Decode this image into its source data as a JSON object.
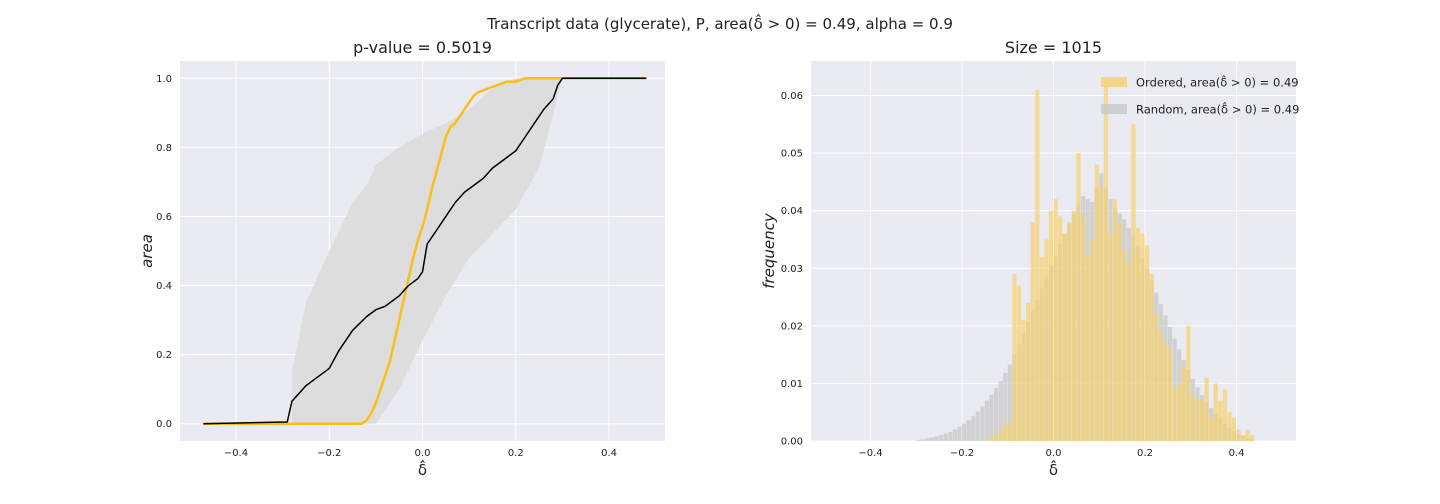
{
  "suptitle": "Transcript data (glycerate), P, area(δ̂ > 0) = 0.49, alpha = 0.9",
  "colors": {
    "axes_bg": "#eaeaf2",
    "grid": "#ffffff",
    "ordered": "#fbbf16",
    "random": "#000000",
    "band": "#dcdcdc",
    "hist_random": "#c8c8c8"
  },
  "chart_data": [
    {
      "type": "line",
      "title": "p-value = 0.5019",
      "xlabel": "δ̂",
      "ylabel": "area",
      "xlim": [
        -0.52,
        0.52
      ],
      "ylim": [
        -0.05,
        1.05
      ],
      "xticks": [
        -0.4,
        -0.2,
        0.0,
        0.2,
        0.4
      ],
      "xtick_labels": [
        "−0.4",
        "−0.2",
        "0.0",
        "0.2",
        "0.4"
      ],
      "yticks": [
        0.0,
        0.2,
        0.4,
        0.6,
        0.8,
        1.0
      ],
      "ytick_labels": [
        "0.0",
        "0.2",
        "0.4",
        "0.6",
        "0.8",
        "1.0"
      ],
      "grid": true,
      "band": {
        "x": [
          -0.28,
          -0.25,
          -0.2,
          -0.15,
          -0.12,
          -0.1,
          -0.05,
          0.0,
          0.05,
          0.1,
          0.15,
          0.2,
          0.25,
          0.3
        ],
        "upper": [
          0.15,
          0.35,
          0.5,
          0.64,
          0.69,
          0.75,
          0.8,
          0.84,
          0.87,
          0.91,
          0.97,
          1.0,
          1.0,
          1.0
        ],
        "lower": [
          0.0,
          0.0,
          0.0,
          0.0,
          0.0,
          0.0,
          0.1,
          0.24,
          0.37,
          0.48,
          0.55,
          0.62,
          0.74,
          1.0
        ]
      },
      "series": [
        {
          "name": "Random",
          "color": "#000000",
          "x": [
            -0.47,
            -0.29,
            -0.28,
            -0.27,
            -0.25,
            -0.23,
            -0.2,
            -0.18,
            -0.15,
            -0.12,
            -0.1,
            -0.08,
            -0.05,
            -0.03,
            -0.01,
            0.0,
            0.01,
            0.03,
            0.05,
            0.07,
            0.09,
            0.11,
            0.13,
            0.15,
            0.18,
            0.2,
            0.22,
            0.24,
            0.26,
            0.28,
            0.29,
            0.3,
            0.48
          ],
          "y": [
            0.0,
            0.005,
            0.065,
            0.08,
            0.11,
            0.13,
            0.16,
            0.21,
            0.27,
            0.31,
            0.33,
            0.34,
            0.37,
            0.4,
            0.42,
            0.44,
            0.52,
            0.56,
            0.6,
            0.64,
            0.67,
            0.69,
            0.71,
            0.74,
            0.77,
            0.79,
            0.83,
            0.87,
            0.91,
            0.94,
            0.98,
            1.0,
            1.0
          ]
        },
        {
          "name": "Ordered",
          "color": "#fbbf16",
          "x": [
            -0.47,
            -0.13,
            -0.12,
            -0.11,
            -0.1,
            -0.09,
            -0.08,
            -0.07,
            -0.06,
            -0.05,
            -0.04,
            -0.03,
            -0.02,
            -0.01,
            0.0,
            0.01,
            0.02,
            0.03,
            0.04,
            0.05,
            0.06,
            0.07,
            0.08,
            0.09,
            0.1,
            0.11,
            0.12,
            0.14,
            0.16,
            0.18,
            0.2,
            0.22,
            0.24,
            0.26,
            0.28,
            0.48
          ],
          "y": [
            0.0,
            0.0,
            0.01,
            0.03,
            0.06,
            0.1,
            0.14,
            0.18,
            0.24,
            0.3,
            0.36,
            0.42,
            0.48,
            0.53,
            0.57,
            0.62,
            0.68,
            0.73,
            0.78,
            0.83,
            0.86,
            0.87,
            0.89,
            0.91,
            0.93,
            0.95,
            0.96,
            0.97,
            0.98,
            0.99,
            0.99,
            1.0,
            1.0,
            1.0,
            1.0,
            1.0
          ]
        }
      ]
    },
    {
      "type": "bar",
      "title": "Size = 1015",
      "xlabel": "δ̂",
      "ylabel": "frequency",
      "xlim": [
        -0.53,
        0.53
      ],
      "ylim": [
        0.0,
        0.066
      ],
      "xticks": [
        -0.4,
        -0.2,
        0.0,
        0.2,
        0.4
      ],
      "xtick_labels": [
        "−0.4",
        "−0.2",
        "0.0",
        "0.2",
        "0.4"
      ],
      "yticks": [
        0.0,
        0.01,
        0.02,
        0.03,
        0.04,
        0.05,
        0.06
      ],
      "ytick_labels": [
        "0.00",
        "0.01",
        "0.02",
        "0.03",
        "0.04",
        "0.05",
        "0.06"
      ],
      "grid": true,
      "legend_position": "top-right",
      "bin_start": -0.3,
      "bin_width": 0.01,
      "series": [
        {
          "name": "Ordered, area(δ̂ > 0) = 0.49",
          "color": "#f6d16b",
          "values": [
            0.0,
            0.0,
            0.0,
            0.0,
            0.0,
            0.0,
            0.0,
            0.0,
            0.0,
            0.0,
            0.0,
            0.0,
            0.0,
            0.0,
            0.0,
            0.0,
            0.001,
            0.001,
            0.002,
            0.003,
            0.003,
            0.029,
            0.027,
            0.021,
            0.024,
            0.038,
            0.061,
            0.032,
            0.035,
            0.04,
            0.042,
            0.039,
            0.036,
            0.038,
            0.04,
            0.05,
            0.039,
            0.032,
            0.035,
            0.048,
            0.044,
            0.062,
            0.036,
            0.042,
            0.038,
            0.033,
            0.031,
            0.055,
            0.037,
            0.036,
            0.034,
            0.029,
            0.022,
            0.019,
            0.017,
            0.016,
            0.009,
            0.01,
            0.013,
            0.02,
            0.008,
            0.007,
            0.007,
            0.011,
            0.004,
            0.01,
            0.007,
            0.009,
            0.005,
            0.004,
            0.002,
            0.001,
            0.002,
            0.001
          ]
        },
        {
          "name": "Random, area(δ̂ > 0) = 0.49",
          "color": "#c8c8c8",
          "values": [
            0.0002,
            0.0003,
            0.0005,
            0.0006,
            0.0008,
            0.001,
            0.0013,
            0.0016,
            0.002,
            0.0025,
            0.003,
            0.0036,
            0.0043,
            0.0051,
            0.006,
            0.007,
            0.008,
            0.0092,
            0.0104,
            0.0118,
            0.0133,
            0.015,
            0.0168,
            0.0187,
            0.0206,
            0.0226,
            0.0245,
            0.0265,
            0.0286,
            0.0305,
            0.0322,
            0.0342,
            0.036,
            0.0378,
            0.0395,
            0.041,
            0.0425,
            0.042,
            0.0415,
            0.044,
            0.0465,
            0.044,
            0.042,
            0.0405,
            0.0395,
            0.0385,
            0.037,
            0.0355,
            0.0338,
            0.0318,
            0.0298,
            0.0278,
            0.0258,
            0.0238,
            0.0218,
            0.0198,
            0.0178,
            0.0159,
            0.0141,
            0.0124,
            0.0108,
            0.0093,
            0.008,
            0.0068,
            0.0057,
            0.0047,
            0.0038,
            0.003,
            0.0023,
            0.0017,
            0.0012,
            0.0008,
            0.0005,
            0.0003
          ]
        }
      ]
    }
  ]
}
